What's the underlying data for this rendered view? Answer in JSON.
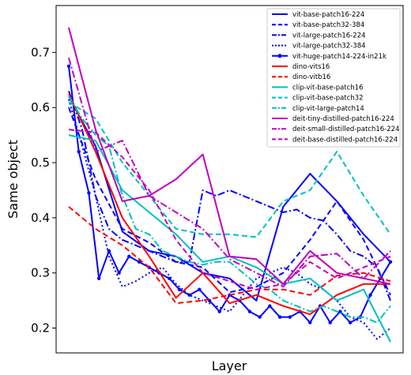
{
  "chart_data": {
    "type": "line",
    "xlabel": "Layer",
    "ylabel": "Same object",
    "ylim": [
      0.155,
      0.785
    ],
    "yticks": [
      0.2,
      0.3,
      0.4,
      0.5,
      0.6,
      0.7
    ],
    "yticklabels": [
      "0.2",
      "0.3",
      "0.4",
      "0.5",
      "0.6",
      "0.7"
    ],
    "grid": false,
    "legend": "top-right",
    "series": [
      {
        "name": "vit-base-patch16-224",
        "color": "#0000ff",
        "dash": "solid",
        "marker": false,
        "x": [
          0,
          1,
          2,
          3,
          4,
          5,
          6,
          7,
          8,
          9,
          10,
          11,
          12
        ],
        "y": [
          0.62,
          0.53,
          0.375,
          0.34,
          0.33,
          0.3,
          0.29,
          0.25,
          0.42,
          0.48,
          0.43,
          0.37,
          0.32
        ]
      },
      {
        "name": "vit-base-patch32-384",
        "color": "#0000ff",
        "dash": "dashed",
        "marker": false,
        "x": [
          0,
          1,
          2,
          3,
          4,
          5,
          6,
          7,
          8,
          9,
          10,
          11,
          12
        ],
        "y": [
          0.6,
          0.47,
          0.38,
          0.355,
          0.32,
          0.31,
          0.265,
          0.275,
          0.3,
          0.36,
          0.43,
          0.36,
          0.26
        ]
      },
      {
        "name": "vit-large-patch16-224",
        "color": "#0000ff",
        "dash": "dashdot",
        "marker": false,
        "x": [
          0,
          1,
          2,
          3,
          4,
          5,
          6,
          7,
          8,
          9,
          10,
          11,
          12,
          13,
          14,
          15,
          16,
          17,
          18,
          19,
          20,
          21,
          22,
          23,
          24
        ],
        "y": [
          0.63,
          0.56,
          0.44,
          0.38,
          0.36,
          0.35,
          0.34,
          0.33,
          0.32,
          0.32,
          0.45,
          0.44,
          0.45,
          0.44,
          0.43,
          0.42,
          0.41,
          0.415,
          0.4,
          0.395,
          0.37,
          0.34,
          0.33,
          0.31,
          0.25
        ]
      },
      {
        "name": "vit-large-patch32-384",
        "color": "#0000ff",
        "dash": "dotted",
        "marker": false,
        "x": [
          0,
          1,
          2,
          3,
          4,
          5,
          6,
          7,
          8,
          9,
          10,
          11,
          12,
          13,
          14,
          15,
          16,
          17,
          18,
          19,
          20,
          21,
          22,
          23,
          24
        ],
        "y": [
          0.615,
          0.53,
          0.44,
          0.33,
          0.275,
          0.285,
          0.3,
          0.31,
          0.28,
          0.26,
          0.25,
          0.24,
          0.23,
          0.26,
          0.29,
          0.3,
          0.31,
          0.3,
          0.28,
          0.27,
          0.25,
          0.22,
          0.21,
          0.18,
          0.2
        ]
      },
      {
        "name": "vit-huge-patch14-224-in21k",
        "color": "#0000ff",
        "dash": "solid",
        "marker": true,
        "x": [
          0,
          1,
          2,
          3,
          4,
          5,
          6,
          7,
          8,
          9,
          10,
          11,
          12,
          13,
          14,
          15,
          16,
          17,
          18,
          19,
          20,
          21,
          22,
          23,
          24,
          25,
          26,
          27,
          28,
          29,
          30,
          31,
          32
        ],
        "y": [
          0.675,
          0.52,
          0.445,
          0.29,
          0.34,
          0.3,
          0.33,
          0.32,
          0.31,
          0.3,
          0.29,
          0.27,
          0.26,
          0.27,
          0.25,
          0.23,
          0.26,
          0.25,
          0.23,
          0.22,
          0.24,
          0.22,
          0.22,
          0.23,
          0.21,
          0.24,
          0.21,
          0.23,
          0.21,
          0.22,
          0.26,
          0.29,
          0.32
        ]
      },
      {
        "name": "dino-vits16",
        "color": "#ff0000",
        "dash": "solid",
        "marker": false,
        "x": [
          0,
          1,
          2,
          3,
          4,
          5,
          6,
          7,
          8,
          9,
          10,
          11,
          12
        ],
        "y": [
          0.625,
          0.52,
          0.4,
          0.33,
          0.255,
          0.3,
          0.245,
          0.26,
          0.24,
          0.225,
          0.26,
          0.28,
          0.28
        ]
      },
      {
        "name": "dino-vitb16",
        "color": "#ff0000",
        "dash": "dashed",
        "marker": false,
        "x": [
          0,
          1,
          2,
          3,
          4,
          5,
          6,
          7,
          8,
          9,
          10,
          11,
          12
        ],
        "y": [
          0.42,
          0.38,
          0.35,
          0.31,
          0.245,
          0.25,
          0.26,
          0.27,
          0.27,
          0.26,
          0.295,
          0.3,
          0.285
        ]
      },
      {
        "name": "clip-vit-base-patch16",
        "color": "#00bfbf",
        "dash": "solid",
        "marker": false,
        "x": [
          0,
          1,
          2,
          3,
          4,
          5,
          6,
          7,
          8,
          9,
          10,
          11,
          12
        ],
        "y": [
          0.55,
          0.54,
          0.45,
          0.41,
          0.37,
          0.32,
          0.33,
          0.31,
          0.28,
          0.29,
          0.25,
          0.27,
          0.175
        ]
      },
      {
        "name": "clip-vit-base-patch32",
        "color": "#00bfbf",
        "dash": "dashed",
        "marker": false,
        "x": [
          0,
          1,
          2,
          3,
          4,
          5,
          6,
          7,
          8,
          9,
          10,
          11,
          12
        ],
        "y": [
          0.61,
          0.58,
          0.5,
          0.44,
          0.38,
          0.37,
          0.37,
          0.365,
          0.43,
          0.45,
          0.52,
          0.44,
          0.37
        ]
      },
      {
        "name": "clip-vit-large-patch14",
        "color": "#00bfbf",
        "dash": "dashdot",
        "marker": false,
        "x": [
          0,
          1,
          2,
          3,
          4,
          5,
          6,
          7,
          8,
          9,
          10,
          11,
          12,
          13,
          14,
          15,
          16,
          17,
          18,
          19,
          20,
          21,
          22,
          23,
          24
        ],
        "y": [
          0.62,
          0.58,
          0.55,
          0.53,
          0.44,
          0.38,
          0.37,
          0.34,
          0.33,
          0.32,
          0.315,
          0.32,
          0.32,
          0.3,
          0.28,
          0.27,
          0.25,
          0.24,
          0.23,
          0.24,
          0.23,
          0.22,
          0.22,
          0.21,
          0.24
        ]
      },
      {
        "name": "deit-tiny-distilled-patch16-224",
        "color": "#bf00bf",
        "dash": "solid",
        "marker": false,
        "x": [
          0,
          1,
          2,
          3,
          4,
          5,
          6,
          7,
          8,
          9,
          10,
          11,
          12
        ],
        "y": [
          0.745,
          0.56,
          0.43,
          0.44,
          0.47,
          0.515,
          0.33,
          0.325,
          0.28,
          0.34,
          0.3,
          0.29,
          0.28
        ]
      },
      {
        "name": "deit-small-distilled-patch16-224",
        "color": "#bf00bf",
        "dash": "dashdot",
        "marker": false,
        "x": [
          0,
          1,
          2,
          3,
          4,
          5,
          6,
          7,
          8,
          9,
          10,
          11,
          12
        ],
        "y": [
          0.69,
          0.52,
          0.54,
          0.44,
          0.41,
          0.38,
          0.325,
          0.3,
          0.275,
          0.33,
          0.335,
          0.29,
          0.34
        ]
      },
      {
        "name": "deit-base-distilled-patch16-224",
        "color": "#bf00bf",
        "dash": "dashed",
        "marker": false,
        "x": [
          0,
          1,
          2,
          3,
          4,
          5,
          6,
          7,
          8,
          9,
          10,
          11,
          12
        ],
        "y": [
          0.56,
          0.555,
          0.51,
          0.45,
          0.36,
          0.3,
          0.285,
          0.27,
          0.28,
          0.32,
          0.29,
          0.31,
          0.33
        ]
      }
    ]
  }
}
